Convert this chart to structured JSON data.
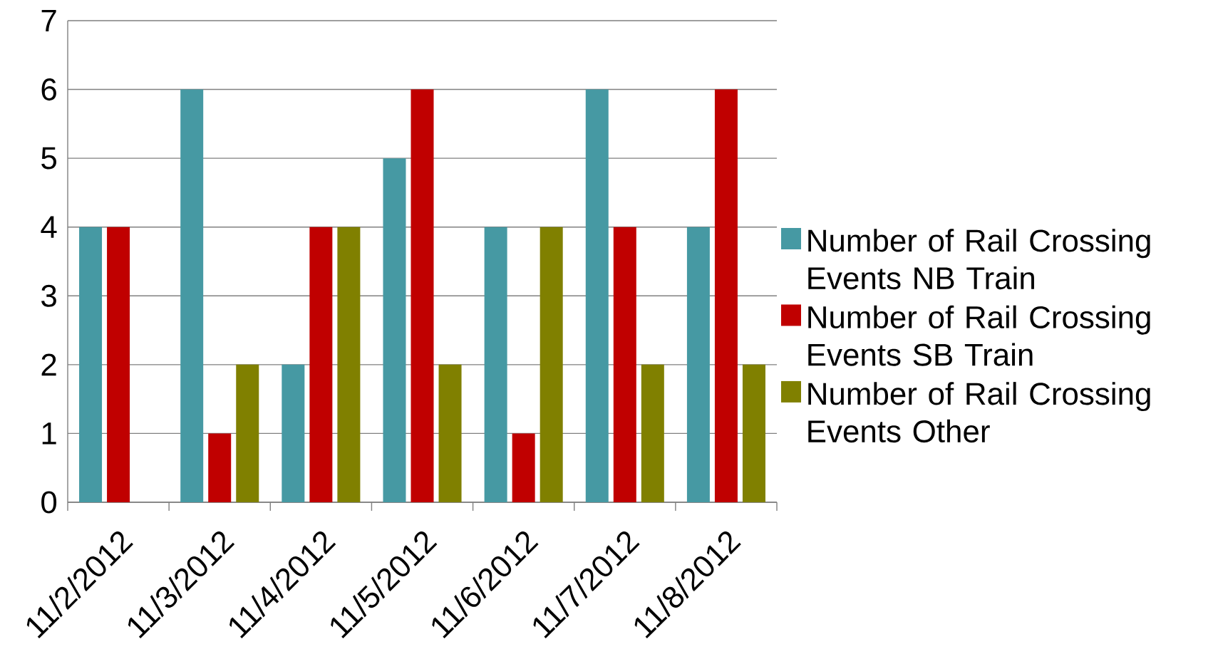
{
  "chart_data": {
    "type": "bar",
    "categories": [
      "11/2/2012",
      "11/3/2012",
      "11/4/2012",
      "11/5/2012",
      "11/6/2012",
      "11/7/2012",
      "11/8/2012"
    ],
    "series": [
      {
        "name": "Number of Rail Crossing Events NB Train",
        "color": "#4699a3",
        "values": [
          4,
          6,
          2,
          5,
          4,
          6,
          4
        ]
      },
      {
        "name": "Number of Rail Crossing Events SB Train",
        "color": "#c00000",
        "values": [
          4,
          1,
          4,
          6,
          1,
          4,
          6
        ]
      },
      {
        "name": "Number of Rail Crossing Events Other",
        "color": "#808000",
        "values": [
          0,
          2,
          4,
          2,
          4,
          2,
          2
        ]
      }
    ],
    "ylim": [
      0,
      7
    ],
    "yticks": [
      0,
      1,
      2,
      3,
      4,
      5,
      6,
      7
    ],
    "grid": "y",
    "legend": "right"
  }
}
